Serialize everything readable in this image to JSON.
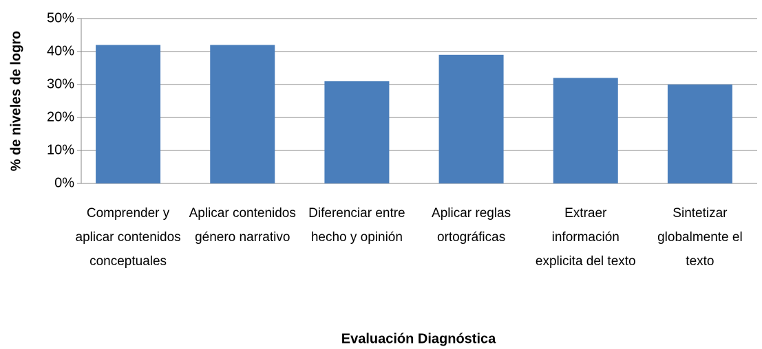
{
  "chart_data": {
    "type": "bar",
    "y_label": "% de niveles de logro",
    "x_label": "Evaluación Diagnóstica",
    "categories": [
      "Comprender y aplicar contenidos conceptuales",
      "Aplicar contenidos género narrativo",
      "Diferenciar entre hecho y opinión",
      "Aplicar reglas ortográficas",
      "Extraer información explicita del texto",
      "Sintetizar globalmente el texto"
    ],
    "values": [
      42,
      42,
      31,
      39,
      32,
      30
    ],
    "color": "#4a7ebb",
    "ylim": [
      0,
      50
    ],
    "yticks": [
      {
        "value": 0,
        "label": "0%"
      },
      {
        "value": 10,
        "label": "10%"
      },
      {
        "value": 20,
        "label": "20%"
      },
      {
        "value": 30,
        "label": "30%"
      },
      {
        "value": 40,
        "label": "40%"
      },
      {
        "value": 50,
        "label": "50%"
      }
    ],
    "grid": true
  }
}
